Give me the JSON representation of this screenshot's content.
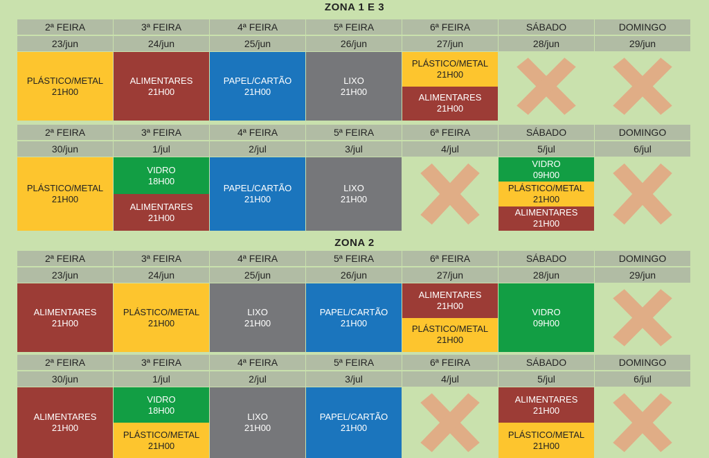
{
  "colors": {
    "yellow": "#fdc52e",
    "red": "#9c3c36",
    "blue": "#1b75bd",
    "grey": "#76777a",
    "green": "#129e44",
    "cross": "#e0ad86",
    "header": "#b1bca4",
    "background": "#c9e1ad"
  },
  "zones": [
    {
      "title": "ZONA 1 E 3",
      "weeks": [
        {
          "days": [
            {
              "day": "2ª FEIRA",
              "date": "23/jun",
              "items": [
                {
                  "label": "PLÁSTICO/METAL",
                  "time": "21H00",
                  "color": "yellow"
                }
              ]
            },
            {
              "day": "3ª FEIRA",
              "date": "24/jun",
              "items": [
                {
                  "label": "ALIMENTARES",
                  "time": "21H00",
                  "color": "red"
                }
              ]
            },
            {
              "day": "4ª FEIRA",
              "date": "25/jun",
              "items": [
                {
                  "label": "PAPEL/CARTÃO",
                  "time": "21H00",
                  "color": "blue"
                }
              ]
            },
            {
              "day": "5ª FEIRA",
              "date": "26/jun",
              "items": [
                {
                  "label": "LIXO",
                  "time": "21H00",
                  "color": "grey"
                }
              ]
            },
            {
              "day": "6ª FEIRA",
              "date": "27/jun",
              "items": [
                {
                  "label": "PLÁSTICO/METAL",
                  "time": "21H00",
                  "color": "yellow"
                },
                {
                  "label": "ALIMENTARES",
                  "time": "21H00",
                  "color": "red"
                }
              ]
            },
            {
              "day": "SÁBADO",
              "date": "28/jun",
              "items": []
            },
            {
              "day": "DOMINGO",
              "date": "29/jun",
              "items": []
            }
          ]
        },
        {
          "days": [
            {
              "day": "2ª FEIRA",
              "date": "30/jun",
              "items": [
                {
                  "label": "PLÁSTICO/METAL",
                  "time": "21H00",
                  "color": "yellow"
                }
              ]
            },
            {
              "day": "3ª FEIRA",
              "date": "1/jul",
              "items": [
                {
                  "label": "VIDRO",
                  "time": "18H00",
                  "color": "green"
                },
                {
                  "label": "ALIMENTARES",
                  "time": "21H00",
                  "color": "red"
                }
              ]
            },
            {
              "day": "4ª FEIRA",
              "date": "2/jul",
              "items": [
                {
                  "label": "PAPEL/CARTÃO",
                  "time": "21H00",
                  "color": "blue"
                }
              ]
            },
            {
              "day": "5ª FEIRA",
              "date": "3/jul",
              "items": [
                {
                  "label": "LIXO",
                  "time": "21H00",
                  "color": "grey"
                }
              ]
            },
            {
              "day": "6ª FEIRA",
              "date": "4/jul",
              "items": []
            },
            {
              "day": "SÁBADO",
              "date": "5/jul",
              "items": [
                {
                  "label": "VIDRO",
                  "time": "09H00",
                  "color": "green"
                },
                {
                  "label": "PLÁSTICO/METAL",
                  "time": "21H00",
                  "color": "yellow"
                },
                {
                  "label": "ALIMENTARES",
                  "time": "21H00",
                  "color": "red"
                }
              ]
            },
            {
              "day": "DOMINGO",
              "date": "6/jul",
              "items": []
            }
          ]
        }
      ]
    },
    {
      "title": "ZONA 2",
      "weeks": [
        {
          "days": [
            {
              "day": "2ª FEIRA",
              "date": "23/jun",
              "items": [
                {
                  "label": "ALIMENTARES",
                  "time": "21H00",
                  "color": "red"
                }
              ]
            },
            {
              "day": "3ª FEIRA",
              "date": "24/jun",
              "items": [
                {
                  "label": "PLÁSTICO/METAL",
                  "time": "21H00",
                  "color": "yellow"
                }
              ]
            },
            {
              "day": "4ª FEIRA",
              "date": "25/jun",
              "items": [
                {
                  "label": "LIXO",
                  "time": "21H00",
                  "color": "grey"
                }
              ]
            },
            {
              "day": "5ª FEIRA",
              "date": "26/jun",
              "items": [
                {
                  "label": "PAPEL/CARTÃO",
                  "time": "21H00",
                  "color": "blue"
                }
              ]
            },
            {
              "day": "6ª FEIRA",
              "date": "27/jun",
              "items": [
                {
                  "label": "ALIMENTARES",
                  "time": "21H00",
                  "color": "red"
                },
                {
                  "label": "PLÁSTICO/METAL",
                  "time": "21H00",
                  "color": "yellow"
                }
              ]
            },
            {
              "day": "SÁBADO",
              "date": "28/jun",
              "items": [
                {
                  "label": "VIDRO",
                  "time": "09H00",
                  "color": "green"
                }
              ]
            },
            {
              "day": "DOMINGO",
              "date": "29/jun",
              "items": []
            }
          ]
        },
        {
          "days": [
            {
              "day": "2ª FEIRA",
              "date": "30/jun",
              "items": [
                {
                  "label": "ALIMENTARES",
                  "time": "21H00",
                  "color": "red"
                }
              ]
            },
            {
              "day": "3ª FEIRA",
              "date": "1/jul",
              "items": [
                {
                  "label": "VIDRO",
                  "time": "18H00",
                  "color": "green"
                },
                {
                  "label": "PLÁSTICO/METAL",
                  "time": "21H00",
                  "color": "yellow"
                }
              ]
            },
            {
              "day": "4ª FEIRA",
              "date": "2/jul",
              "items": [
                {
                  "label": "LIXO",
                  "time": "21H00",
                  "color": "grey"
                }
              ]
            },
            {
              "day": "5ª FEIRA",
              "date": "3/jul",
              "items": [
                {
                  "label": "PAPEL/CARTÃO",
                  "time": "21H00",
                  "color": "blue"
                }
              ]
            },
            {
              "day": "6ª FEIRA",
              "date": "4/jul",
              "items": []
            },
            {
              "day": "SÁBADO",
              "date": "5/jul",
              "items": [
                {
                  "label": "ALIMENTARES",
                  "time": "21H00",
                  "color": "red"
                },
                {
                  "label": "PLÁSTICO/METAL",
                  "time": "21H00",
                  "color": "yellow"
                }
              ]
            },
            {
              "day": "DOMINGO",
              "date": "6/jul",
              "items": []
            }
          ]
        }
      ]
    }
  ]
}
